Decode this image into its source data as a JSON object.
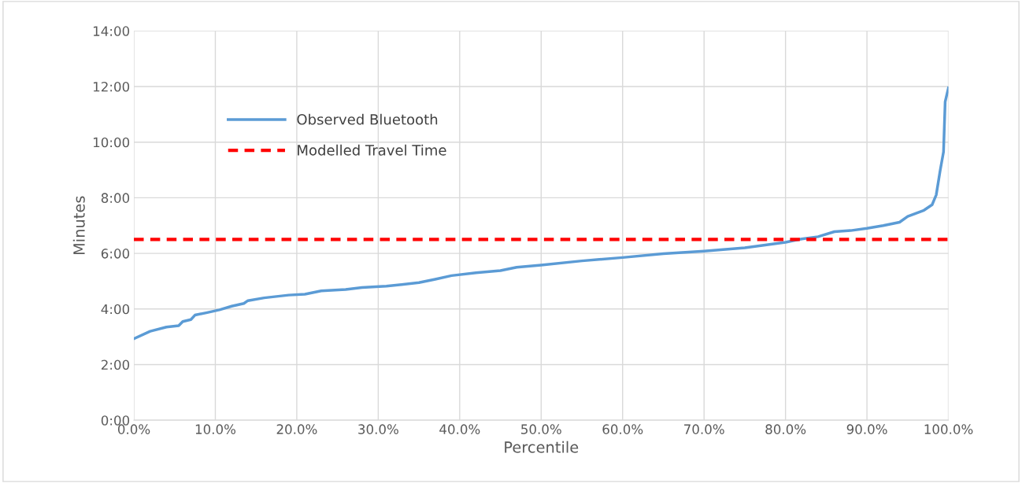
{
  "chart_data": {
    "type": "line",
    "xlabel": "Percentile",
    "ylabel": "Minutes",
    "xlim": [
      0,
      100
    ],
    "ylim": [
      0,
      14
    ],
    "xticks": [
      {
        "value": 0,
        "label": "0.0%"
      },
      {
        "value": 10,
        "label": "10.0%"
      },
      {
        "value": 20,
        "label": "20.0%"
      },
      {
        "value": 30,
        "label": "30.0%"
      },
      {
        "value": 40,
        "label": "40.0%"
      },
      {
        "value": 50,
        "label": "50.0%"
      },
      {
        "value": 60,
        "label": "60.0%"
      },
      {
        "value": 70,
        "label": "70.0%"
      },
      {
        "value": 80,
        "label": "80.0%"
      },
      {
        "value": 90,
        "label": "90.0%"
      },
      {
        "value": 100,
        "label": "100.0%"
      }
    ],
    "yticks": [
      {
        "value": 0,
        "label": "0:00"
      },
      {
        "value": 2,
        "label": "2:00"
      },
      {
        "value": 4,
        "label": "4:00"
      },
      {
        "value": 6,
        "label": "6:00"
      },
      {
        "value": 8,
        "label": "8:00"
      },
      {
        "value": 10,
        "label": "10:00"
      },
      {
        "value": 12,
        "label": "12:00"
      },
      {
        "value": 14,
        "label": "14:00"
      }
    ],
    "grid": true,
    "legend": "top left",
    "marker": "none",
    "series": [
      {
        "name": "Observed Bluetooth",
        "color": "#5b9bd5",
        "line_style": "solid",
        "x": [
          0,
          2,
          4,
          5.5,
          6,
          7,
          7.5,
          9,
          10.5,
          12,
          13.5,
          14,
          16,
          19,
          21,
          23,
          26,
          28,
          31,
          35,
          37,
          39,
          42,
          45,
          47,
          50,
          55,
          60,
          65,
          70,
          75,
          80,
          82,
          84,
          86,
          88,
          90,
          92,
          94,
          95,
          97,
          98,
          98.5,
          99,
          99.4,
          99.6,
          100
        ],
        "values": [
          2.93,
          3.2,
          3.35,
          3.4,
          3.55,
          3.62,
          3.78,
          3.87,
          3.97,
          4.1,
          4.2,
          4.3,
          4.4,
          4.5,
          4.53,
          4.65,
          4.7,
          4.77,
          4.82,
          4.95,
          5.07,
          5.2,
          5.3,
          5.38,
          5.5,
          5.58,
          5.73,
          5.85,
          5.99,
          6.08,
          6.2,
          6.4,
          6.52,
          6.6,
          6.78,
          6.82,
          6.9,
          7.0,
          7.12,
          7.33,
          7.55,
          7.75,
          8.1,
          9.0,
          9.65,
          11.45,
          11.95
        ]
      },
      {
        "name": "Modelled Travel Time",
        "color": "#ff0000",
        "line_style": "dashed",
        "x": [
          0,
          100
        ],
        "values": [
          6.5,
          6.5
        ]
      }
    ]
  }
}
